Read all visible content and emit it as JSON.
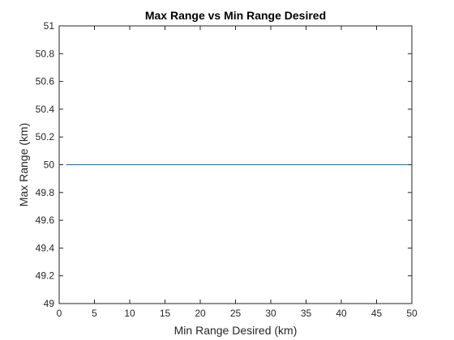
{
  "chart_data": {
    "type": "line",
    "title": "Max Range vs Min Range Desired",
    "xlabel": "Min Range Desired (km)",
    "ylabel": "Max Range (km)",
    "xlim": [
      0,
      50
    ],
    "ylim": [
      49,
      51
    ],
    "xticks": [
      0,
      5,
      10,
      15,
      20,
      25,
      30,
      35,
      40,
      45,
      50
    ],
    "yticks": [
      49,
      49.2,
      49.4,
      49.6,
      49.8,
      50,
      50.2,
      50.4,
      50.6,
      50.8,
      51
    ],
    "grid": false,
    "series": [
      {
        "color": "#0072bd",
        "x": [
          1,
          50
        ],
        "y": [
          50,
          50
        ]
      }
    ]
  }
}
